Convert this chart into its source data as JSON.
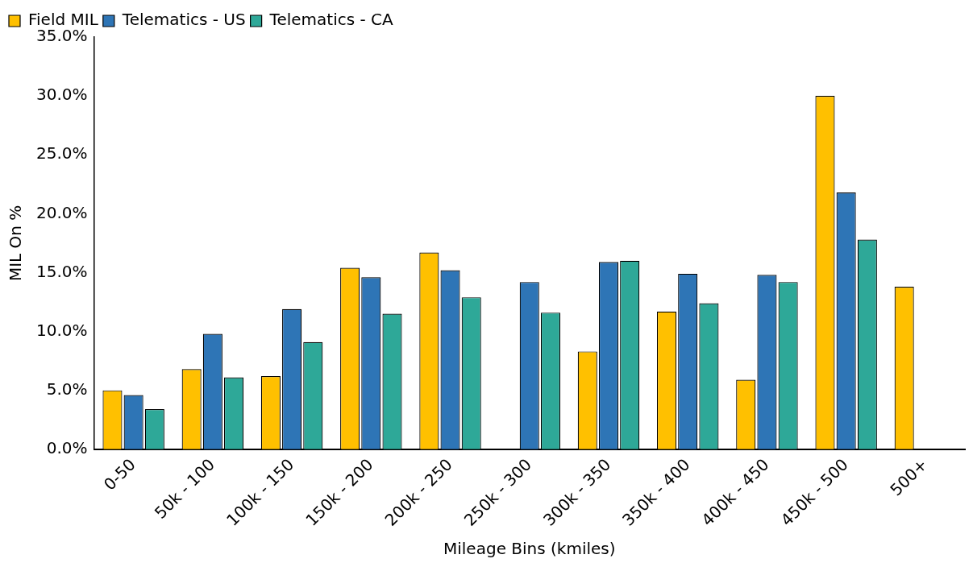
{
  "chart_data": {
    "type": "bar",
    "xlabel": "Mileage Bins (kmiles)",
    "ylabel": "MIL On %",
    "categories": [
      "0-50",
      "50k - 100",
      "100k - 150",
      "150k - 200",
      "200k - 250",
      "250k - 300",
      "300k - 350",
      "350k - 400",
      "400k - 450",
      "450k - 500",
      "500+"
    ],
    "series": [
      {
        "name": "Field MIL",
        "color": "#ffc000",
        "values": [
          5.0,
          6.8,
          6.2,
          15.4,
          16.7,
          null,
          8.3,
          11.7,
          5.9,
          30.0,
          13.8
        ]
      },
      {
        "name": "Telematics - US",
        "color": "#2e75b6",
        "values": [
          4.6,
          9.8,
          11.9,
          14.6,
          15.2,
          14.2,
          15.9,
          14.9,
          14.8,
          21.8,
          null
        ]
      },
      {
        "name": "Telematics - CA",
        "color": "#2ea898",
        "values": [
          3.4,
          6.1,
          9.1,
          11.5,
          12.9,
          11.6,
          16.0,
          12.4,
          14.2,
          17.8,
          null
        ]
      }
    ],
    "ylim": [
      0,
      35
    ],
    "yticks": [
      {
        "value": 0,
        "label": "0.0%"
      },
      {
        "value": 5,
        "label": "5.0%"
      },
      {
        "value": 10,
        "label": "10.0%"
      },
      {
        "value": 15,
        "label": "15.0%"
      },
      {
        "value": 20,
        "label": "20.0%"
      },
      {
        "value": 25,
        "label": "25.0%"
      },
      {
        "value": 30,
        "label": "30.0%"
      },
      {
        "value": 35,
        "label": "35.0%"
      }
    ],
    "grid": false,
    "legend": "top left"
  }
}
